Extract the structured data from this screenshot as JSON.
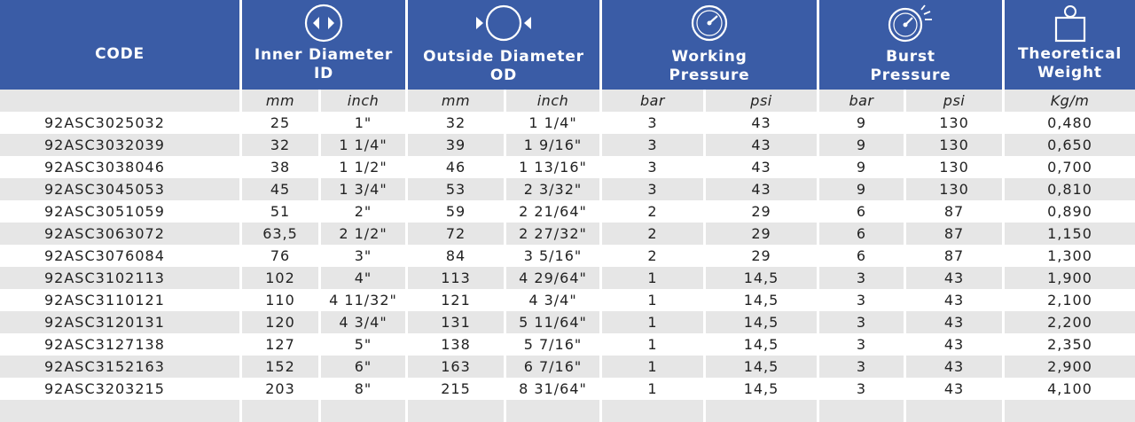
{
  "headers": {
    "code": "CODE",
    "inner_diameter": [
      "Inner Diameter",
      "ID"
    ],
    "outside_diameter": [
      "Outside Diameter",
      "OD"
    ],
    "working_pressure": [
      "Working",
      "Pressure"
    ],
    "burst_pressure": [
      "Burst",
      "Pressure"
    ],
    "theoretical_weight": [
      "Theoretical",
      "Weight"
    ]
  },
  "icons": {
    "inner_diameter": "inner-diameter-icon",
    "outside_diameter": "outside-diameter-icon",
    "working_pressure": "pressure-gauge-icon",
    "burst_pressure": "burst-gauge-icon",
    "theoretical_weight": "weight-icon"
  },
  "colors": {
    "header_bg": "#3a5ca6",
    "stripe": "#e6e6e6"
  },
  "units": [
    "",
    "mm",
    "inch",
    "mm",
    "inch",
    "bar",
    "psi",
    "bar",
    "psi",
    "Kg/m"
  ],
  "rows": [
    [
      "92ASC3025032",
      "25",
      "1\"",
      "32",
      "1 1/4\"",
      "3",
      "43",
      "9",
      "130",
      "0,480"
    ],
    [
      "92ASC3032039",
      "32",
      "1 1/4\"",
      "39",
      "1 9/16\"",
      "3",
      "43",
      "9",
      "130",
      "0,650"
    ],
    [
      "92ASC3038046",
      "38",
      "1 1/2\"",
      "46",
      "1 13/16\"",
      "3",
      "43",
      "9",
      "130",
      "0,700"
    ],
    [
      "92ASC3045053",
      "45",
      "1 3/4\"",
      "53",
      "2 3/32\"",
      "3",
      "43",
      "9",
      "130",
      "0,810"
    ],
    [
      "92ASC3051059",
      "51",
      "2\"",
      "59",
      "2 21/64\"",
      "2",
      "29",
      "6",
      "87",
      "0,890"
    ],
    [
      "92ASC3063072",
      "63,5",
      "2 1/2\"",
      "72",
      "2 27/32\"",
      "2",
      "29",
      "6",
      "87",
      "1,150"
    ],
    [
      "92ASC3076084",
      "76",
      "3\"",
      "84",
      "3 5/16\"",
      "2",
      "29",
      "6",
      "87",
      "1,300"
    ],
    [
      "92ASC3102113",
      "102",
      "4\"",
      "113",
      "4 29/64\"",
      "1",
      "14,5",
      "3",
      "43",
      "1,900"
    ],
    [
      "92ASC3110121",
      "110",
      "4 11/32\"",
      "121",
      "4 3/4\"",
      "1",
      "14,5",
      "3",
      "43",
      "2,100"
    ],
    [
      "92ASC3120131",
      "120",
      "4 3/4\"",
      "131",
      "5 11/64\"",
      "1",
      "14,5",
      "3",
      "43",
      "2,200"
    ],
    [
      "92ASC3127138",
      "127",
      "5\"",
      "138",
      "5 7/16\"",
      "1",
      "14,5",
      "3",
      "43",
      "2,350"
    ],
    [
      "92ASC3152163",
      "152",
      "6\"",
      "163",
      "6 7/16\"",
      "1",
      "14,5",
      "3",
      "43",
      "2,900"
    ],
    [
      "92ASC3203215",
      "203",
      "8\"",
      "215",
      "8 31/64\"",
      "1",
      "14,5",
      "3",
      "43",
      "4,100"
    ],
    [
      "",
      "",
      "",
      "",
      "",
      "",
      "",
      "",
      "",
      ""
    ]
  ]
}
